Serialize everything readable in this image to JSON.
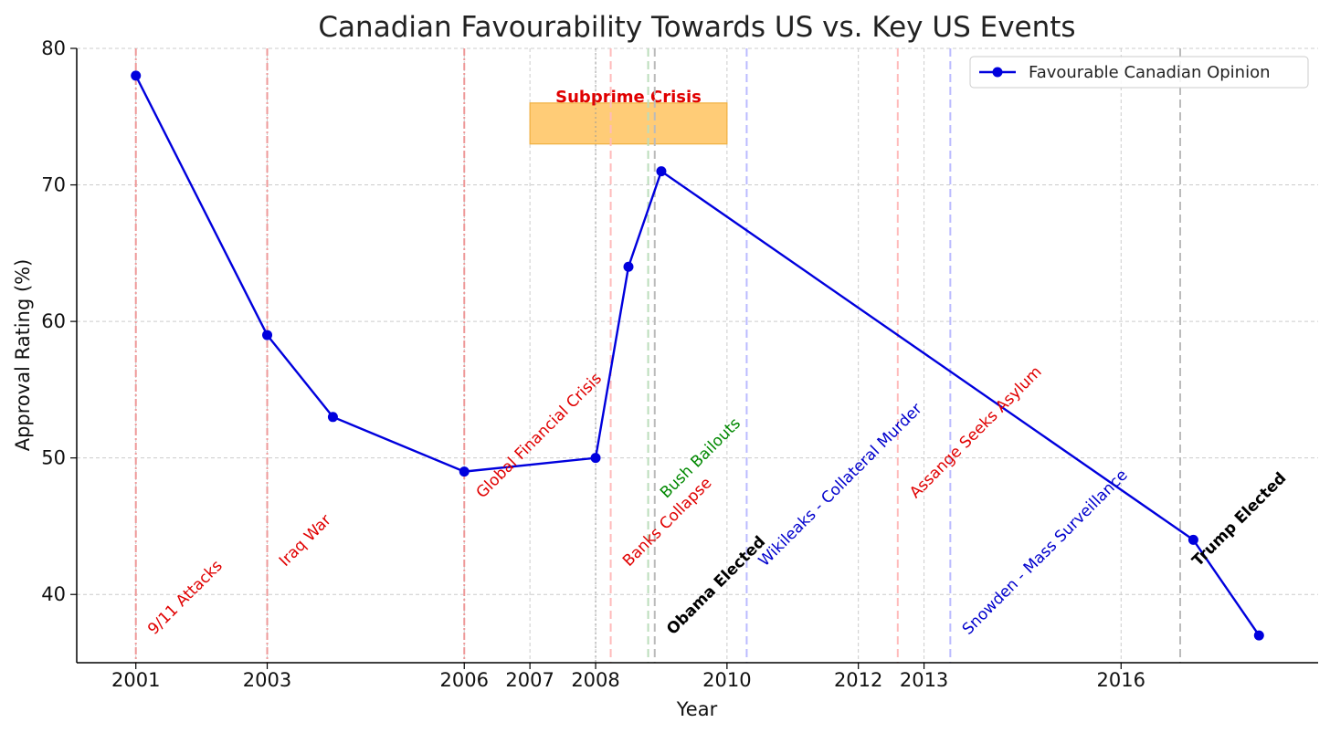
{
  "chart_data": {
    "type": "line",
    "title": "Canadian Favourability Towards US vs. Key US Events",
    "xlabel": "Year",
    "ylabel": "Approval Rating (%)",
    "xlim": [
      2000.1,
      2019.0
    ],
    "ylim": [
      35,
      80
    ],
    "x_ticks": [
      2001,
      2003,
      2006,
      2007,
      2008,
      2010,
      2012,
      2013,
      2016
    ],
    "y_ticks": [
      40,
      50,
      60,
      70,
      80
    ],
    "grid": true,
    "legend_position": "top-right",
    "series": [
      {
        "name": "Favourable Canadian Opinion",
        "color": "#0000dd",
        "marker": "circle",
        "x": [
          2001,
          2003,
          2004,
          2006,
          2008,
          2008.5,
          2009,
          2017.1,
          2018.1
        ],
        "y": [
          78,
          59,
          53,
          49,
          50,
          64,
          71,
          44,
          37
        ]
      }
    ],
    "events": [
      {
        "label": "9/11 Attacks",
        "x": 2001,
        "color": "#e00000",
        "line_color": "#ee9999",
        "style": "dashdot",
        "bold": false,
        "label_y": 37
      },
      {
        "label": "Iraq War",
        "x": 2003,
        "color": "#e00000",
        "line_color": "#ee9999",
        "style": "dashdot",
        "bold": false,
        "label_y": 42
      },
      {
        "label": "Global Financial Crisis",
        "x": 2006,
        "color": "#e00000",
        "line_color": "#ee9999",
        "style": "dashdot",
        "bold": false,
        "label_y": 47
      },
      {
        "label": "Banks Collapse",
        "x": 2008.23,
        "color": "#e00000",
        "line_color": "#ffbbbb",
        "style": "dashed",
        "bold": false,
        "label_y": 42
      },
      {
        "label": "Bush Bailouts",
        "x": 2008.8,
        "color": "#008800",
        "line_color": "#bbddbb",
        "style": "dashed",
        "bold": false,
        "label_y": 47
      },
      {
        "label": "Obama Elected",
        "x": 2008.9,
        "color": "#000000",
        "line_color": "#bbbbbb",
        "style": "dashed",
        "bold": true,
        "label_y": 37
      },
      {
        "label": "Wikileaks - Collateral Murder",
        "x": 2010.3,
        "color": "#0000cc",
        "line_color": "#bbbbff",
        "style": "dashed",
        "bold": false,
        "label_y": 42
      },
      {
        "label": "Assange Seeks Asylum",
        "x": 2012.6,
        "color": "#e00000",
        "line_color": "#ffbbbb",
        "style": "dashed",
        "bold": false,
        "label_y": 47
      },
      {
        "label": "Snowden - Mass Surveillance",
        "x": 2013.4,
        "color": "#0000cc",
        "line_color": "#bbbbff",
        "style": "dashed",
        "bold": false,
        "label_y": 37
      },
      {
        "label": "Trump Elected",
        "x": 2016.9,
        "color": "#000000",
        "line_color": "#bbbbbb",
        "style": "dashed",
        "bold": true,
        "label_y": 42
      }
    ],
    "extra_vlines": [
      {
        "x": 2008,
        "color": "#999999",
        "style": "dotted"
      }
    ],
    "bands": [
      {
        "label": "Subprime Crisis",
        "x0": 2007,
        "x1": 2010,
        "y0": 73,
        "y1": 76,
        "fill": "#ffcc77",
        "stroke": "#f0b040",
        "label_color": "#e00000"
      }
    ]
  }
}
